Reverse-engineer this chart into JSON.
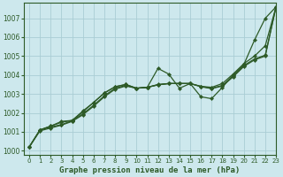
{
  "title": "Graphe pression niveau de la mer (hPa)",
  "bg_color": "#cde8ed",
  "grid_color": "#aacdd4",
  "line_color": "#2d5a27",
  "xlim": [
    -0.5,
    23
  ],
  "ylim": [
    999.8,
    1007.8
  ],
  "xticks": [
    0,
    1,
    2,
    3,
    4,
    5,
    6,
    7,
    8,
    9,
    10,
    11,
    12,
    13,
    14,
    15,
    16,
    17,
    18,
    19,
    20,
    21,
    22,
    23
  ],
  "yticks": [
    1000,
    1001,
    1002,
    1003,
    1004,
    1005,
    1006,
    1007
  ],
  "lines": [
    [
      1000.2,
      1001.1,
      1001.3,
      1001.55,
      1001.6,
      1002.05,
      1002.55,
      1003.05,
      1003.38,
      1003.5,
      1003.3,
      1003.35,
      1004.35,
      1004.05,
      1003.3,
      1003.55,
      1002.85,
      1002.75,
      1003.35,
      1004.0,
      1004.55,
      1005.85,
      1007.0,
      1007.6
    ],
    [
      1000.2,
      1001.1,
      1001.3,
      1001.5,
      1001.6,
      1002.1,
      1002.55,
      1003.05,
      1003.38,
      1003.5,
      1003.3,
      1003.35,
      1003.5,
      1003.55,
      1003.55,
      1003.55,
      1003.4,
      1003.35,
      1003.55,
      1004.05,
      1004.6,
      1005.0,
      1005.55,
      1007.6
    ],
    [
      1000.2,
      1001.1,
      1001.25,
      1001.38,
      1001.58,
      1001.95,
      1002.4,
      1002.9,
      1003.3,
      1003.45,
      1003.3,
      1003.35,
      1003.48,
      1003.55,
      1003.55,
      1003.55,
      1003.4,
      1003.3,
      1003.45,
      1003.95,
      1004.5,
      1004.85,
      1005.05,
      1007.6
    ],
    [
      1000.2,
      1001.05,
      1001.2,
      1001.35,
      1001.55,
      1001.9,
      1002.35,
      1002.85,
      1003.25,
      1003.42,
      1003.3,
      1003.35,
      1003.48,
      1003.55,
      1003.55,
      1003.55,
      1003.38,
      1003.28,
      1003.42,
      1003.9,
      1004.45,
      1004.8,
      1005.0,
      1007.6
    ]
  ],
  "xlabel_fontsize": 6.5,
  "tick_fontsize": 5.0,
  "ylabel_fontsize": 5.5
}
